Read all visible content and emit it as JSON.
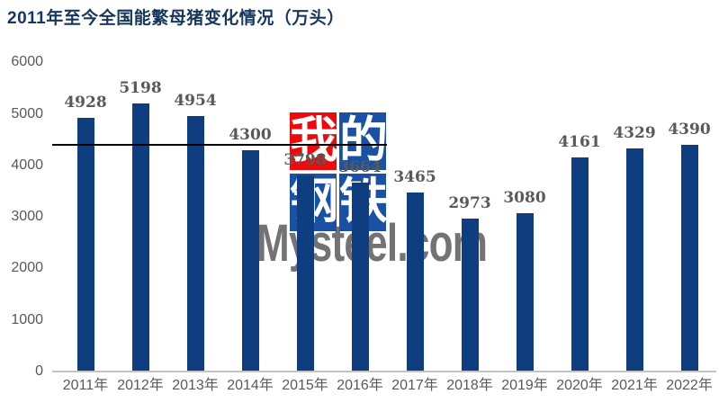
{
  "title": {
    "text": "2011年至今全国能繁母猪变化情况（万头）",
    "color": "#16365c"
  },
  "watermark": {
    "squares": [
      {
        "char": "我",
        "color": "#ee0a0a"
      },
      {
        "char": "的",
        "color": "#1a51a5"
      },
      {
        "char": "钢",
        "color": "#1a51a5"
      },
      {
        "char": "铁",
        "color": "#1a51a5"
      }
    ],
    "site_text": "Mysteel.com"
  },
  "chart_data": {
    "type": "bar",
    "title": "2011年至今全国能繁母猪变化情况（万头）",
    "unit": "万头",
    "categories": [
      "2011年",
      "2012年",
      "2013年",
      "2014年",
      "2015年",
      "2016年",
      "2017年",
      "2018年",
      "2019年",
      "2020年",
      "2021年",
      "2022年"
    ],
    "values": [
      4928,
      5198,
      4954,
      4300,
      3798,
      3664,
      3465,
      2973,
      3080,
      4161,
      4329,
      4390
    ],
    "ylim": [
      0,
      6000
    ],
    "ytick_interval": 1000,
    "grid": false,
    "legend": false,
    "bar_color": "#0f3e80",
    "data_label_color": "#595959",
    "axis_label_color": "#595959",
    "axis_line_color": "#c3c3c3",
    "reference_line": {
      "value": 4400,
      "color": "#000000"
    }
  }
}
